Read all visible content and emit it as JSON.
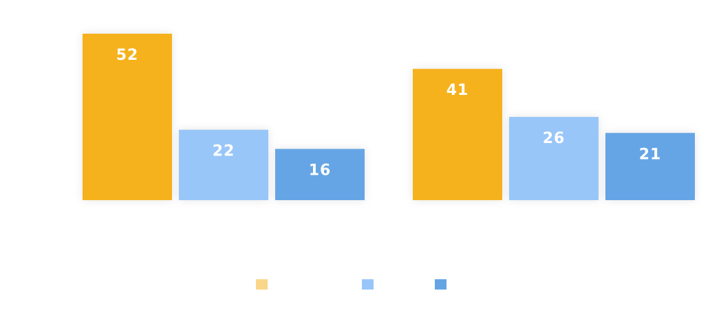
{
  "chart_data": {
    "type": "bar",
    "title": "",
    "xlabel": "",
    "ylabel": "",
    "ylim": [
      0,
      52
    ],
    "grid": false,
    "legend_position": "bottom-center",
    "categories": [
      "",
      ""
    ],
    "series": [
      {
        "color": "#F5B21F",
        "legend_color": "#FAD68A",
        "values": [
          52,
          41
        ]
      },
      {
        "color": "#99C6F8",
        "legend_color": "#99C6F8",
        "values": [
          22,
          26
        ]
      },
      {
        "color": "#65A5E5",
        "legend_color": "#65A5E5",
        "values": [
          16,
          21
        ]
      }
    ]
  }
}
